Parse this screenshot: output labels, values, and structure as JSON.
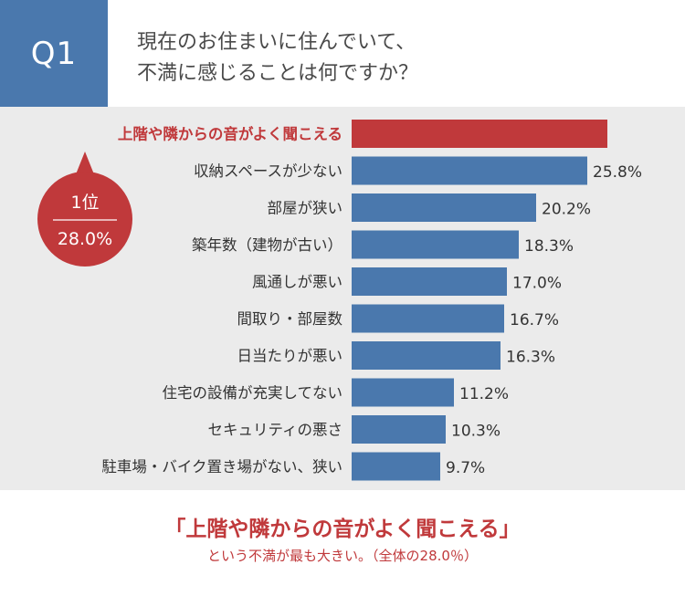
{
  "badge": {
    "label": "Q1"
  },
  "question": {
    "line1": "現在のお住まいに住んでいて、",
    "line2": "不満に感じることは何ですか？"
  },
  "chart_data": {
    "type": "bar",
    "orientation": "horizontal",
    "categories": [
      "上階や隣からの音がよく聞こえる",
      "収納スペースが少ない",
      "部屋が狭い",
      "築年数（建物が古い）",
      "風通しが悪い",
      "間取り・部屋数",
      "日当たりが悪い",
      "住宅の設備が充実してない",
      "セキュリティの悪さ",
      "駐車場・バイク置き場がない、狭い"
    ],
    "values": [
      28.0,
      25.8,
      20.2,
      18.3,
      17.0,
      16.7,
      16.3,
      11.2,
      10.3,
      9.7
    ],
    "value_labels": [
      "",
      "25.8%",
      "20.2%",
      "18.3%",
      "17.0%",
      "16.7%",
      "16.3%",
      "11.2%",
      "10.3%",
      "9.7%"
    ],
    "highlight_index": 0,
    "xlim": [
      0,
      28.0
    ],
    "grid": false,
    "colors": {
      "highlight": "#c0393b",
      "bar": "#4a78ad",
      "text": "#333333",
      "panel": "#ebebeb"
    },
    "callout": {
      "rank": "1位",
      "value": "28.0%"
    }
  },
  "conclusion": {
    "headline": "「上階や隣からの音がよく聞こえる」",
    "sub": "という不満が最も大きい。（全体の28.0％）"
  }
}
